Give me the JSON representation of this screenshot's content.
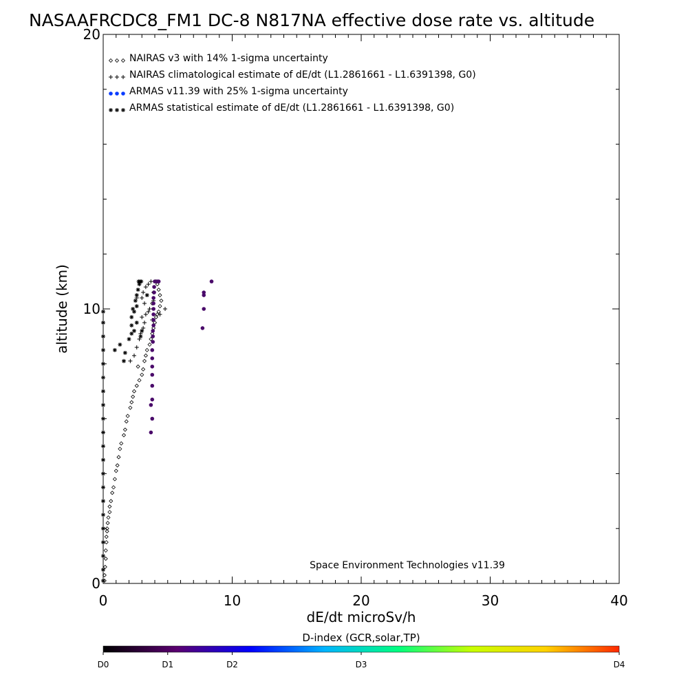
{
  "chart_data": {
    "type": "scatter",
    "title": "NASAAFRCDC8_FM1 DC-8   N817NA effective dose rate vs. altitude",
    "xlabel": "dE/dt microSv/h",
    "ylabel": "altitude (km)",
    "xlim": [
      0,
      40
    ],
    "ylim": [
      0,
      20
    ],
    "x_ticks": [
      "0",
      "10",
      "20",
      "30",
      "40"
    ],
    "y_ticks": [
      "0",
      "10",
      "20"
    ],
    "grid": false,
    "legend_placement": "top-left",
    "annotation": "Space Environment Technologies v11.39",
    "colorbar": {
      "title": "D-index (GCR,solar,TP)",
      "labels": [
        {
          "text": "D0",
          "value": 0
        },
        {
          "text": "D1",
          "value": 1
        },
        {
          "text": "D2",
          "value": 2
        },
        {
          "text": "D3",
          "value": 4
        },
        {
          "text": "D4",
          "value": 8
        }
      ],
      "max_value": 8,
      "colors": [
        "#000000",
        "#5a0070",
        "#0000ff",
        "#00b4ff",
        "#00ff80",
        "#c8ff00",
        "#ffd200",
        "#ff2800"
      ]
    },
    "series": [
      {
        "name": "NAIRAS v3 with 14% 1-sigma uncertainty",
        "marker": "diamond",
        "color": "#000000",
        "points": [
          [
            0.1,
            0.1
          ],
          [
            0.1,
            0.3
          ],
          [
            0.15,
            0.6
          ],
          [
            0.2,
            0.9
          ],
          [
            0.2,
            1.2
          ],
          [
            0.25,
            1.5
          ],
          [
            0.25,
            1.7
          ],
          [
            0.3,
            1.9
          ],
          [
            0.3,
            2.0
          ],
          [
            0.35,
            2.2
          ],
          [
            0.4,
            2.4
          ],
          [
            0.5,
            2.6
          ],
          [
            0.5,
            2.8
          ],
          [
            0.6,
            3.0
          ],
          [
            0.7,
            3.3
          ],
          [
            0.8,
            3.5
          ],
          [
            0.9,
            3.8
          ],
          [
            1.0,
            4.1
          ],
          [
            1.1,
            4.3
          ],
          [
            1.2,
            4.6
          ],
          [
            1.3,
            4.9
          ],
          [
            1.4,
            5.1
          ],
          [
            1.6,
            5.4
          ],
          [
            1.7,
            5.6
          ],
          [
            1.8,
            5.9
          ],
          [
            1.9,
            6.1
          ],
          [
            2.1,
            6.4
          ],
          [
            2.2,
            6.6
          ],
          [
            2.3,
            6.8
          ],
          [
            2.4,
            7.0
          ],
          [
            2.6,
            7.2
          ],
          [
            2.8,
            7.4
          ],
          [
            3.0,
            7.6
          ],
          [
            3.1,
            7.8
          ],
          [
            2.7,
            7.9
          ],
          [
            3.2,
            8.1
          ],
          [
            3.3,
            8.3
          ],
          [
            3.4,
            8.5
          ],
          [
            3.6,
            8.7
          ],
          [
            3.7,
            8.9
          ],
          [
            3.8,
            9.1
          ],
          [
            3.9,
            9.3
          ],
          [
            4.0,
            9.5
          ],
          [
            4.1,
            9.7
          ],
          [
            4.2,
            9.8
          ],
          [
            4.3,
            9.9
          ],
          [
            4.4,
            10.1
          ],
          [
            4.5,
            10.3
          ],
          [
            4.4,
            10.5
          ],
          [
            4.3,
            10.7
          ],
          [
            4.2,
            10.9
          ],
          [
            4.1,
            11.0
          ],
          [
            3.9,
            10.6
          ],
          [
            3.8,
            10.2
          ]
        ]
      },
      {
        "name": "NAIRAS climatological estimate of dE/dt (L1.2861661 - L1.6391398, G0)",
        "marker": "plus",
        "color": "#000000",
        "points": [
          [
            2.1,
            8.1
          ],
          [
            2.4,
            8.3
          ],
          [
            2.6,
            8.6
          ],
          [
            2.8,
            8.9
          ],
          [
            2.9,
            9.1
          ],
          [
            3.1,
            9.3
          ],
          [
            3.2,
            9.5
          ],
          [
            3.0,
            9.7
          ],
          [
            3.3,
            9.8
          ],
          [
            3.5,
            9.9
          ],
          [
            3.6,
            10.0
          ],
          [
            3.2,
            10.2
          ],
          [
            3.0,
            10.4
          ],
          [
            2.6,
            10.4
          ],
          [
            3.1,
            10.6
          ],
          [
            3.3,
            10.8
          ],
          [
            3.5,
            10.9
          ],
          [
            3.7,
            11.0
          ],
          [
            4.8,
            10.0
          ],
          [
            4.4,
            9.8
          ],
          [
            3.8,
            9.6
          ],
          [
            3.9,
            10.3
          ]
        ]
      },
      {
        "name": "ARMAS v11.39 with 25% 1-sigma uncertainty",
        "marker": "dot",
        "color": "#4a0a6a",
        "legend_color": "#0a3cff",
        "points": [
          [
            3.7,
            5.5
          ],
          [
            3.8,
            6.0
          ],
          [
            3.7,
            6.5
          ],
          [
            3.8,
            6.7
          ],
          [
            3.8,
            7.2
          ],
          [
            3.8,
            7.6
          ],
          [
            3.8,
            7.9
          ],
          [
            3.8,
            8.2
          ],
          [
            3.8,
            8.5
          ],
          [
            3.85,
            8.8
          ],
          [
            3.85,
            9.0
          ],
          [
            3.85,
            9.2
          ],
          [
            3.9,
            9.4
          ],
          [
            3.9,
            9.6
          ],
          [
            3.9,
            9.8
          ],
          [
            3.9,
            10.0
          ],
          [
            3.9,
            10.2
          ],
          [
            3.9,
            10.4
          ],
          [
            3.95,
            10.6
          ],
          [
            3.95,
            10.8
          ],
          [
            4.0,
            11.0
          ],
          [
            4.2,
            11.0
          ],
          [
            4.3,
            11.0
          ],
          [
            7.7,
            9.3
          ],
          [
            7.8,
            10.0
          ],
          [
            7.8,
            10.5
          ],
          [
            7.8,
            10.6
          ],
          [
            8.4,
            11.0
          ]
        ]
      },
      {
        "name": "ARMAS statistical estimate of dE/dt (L1.2861661 - L1.6391398, G0)",
        "marker": "asterisk",
        "color": "#000000",
        "points": [
          [
            0.0,
            0.1
          ],
          [
            0.0,
            0.5
          ],
          [
            0.0,
            1.0
          ],
          [
            0.0,
            1.5
          ],
          [
            0.0,
            2.0
          ],
          [
            0.0,
            2.5
          ],
          [
            0.0,
            3.0
          ],
          [
            0.0,
            3.5
          ],
          [
            0.0,
            4.0
          ],
          [
            0.0,
            4.5
          ],
          [
            0.0,
            5.0
          ],
          [
            0.0,
            5.5
          ],
          [
            0.0,
            6.0
          ],
          [
            0.0,
            6.5
          ],
          [
            0.0,
            7.0
          ],
          [
            0.0,
            7.5
          ],
          [
            0.0,
            8.0
          ],
          [
            0.0,
            8.5
          ],
          [
            0.0,
            9.0
          ],
          [
            0.0,
            9.5
          ],
          [
            0.0,
            9.9
          ],
          [
            0.9,
            8.5
          ],
          [
            1.3,
            8.7
          ],
          [
            1.7,
            8.4
          ],
          [
            1.6,
            8.1
          ],
          [
            2.0,
            8.9
          ],
          [
            2.2,
            9.1
          ],
          [
            2.4,
            9.2
          ],
          [
            2.2,
            9.4
          ],
          [
            2.6,
            9.5
          ],
          [
            2.2,
            9.7
          ],
          [
            2.4,
            9.9
          ],
          [
            2.3,
            10.0
          ],
          [
            2.6,
            10.1
          ],
          [
            2.5,
            10.3
          ],
          [
            2.6,
            10.5
          ],
          [
            2.7,
            10.7
          ],
          [
            2.75,
            11.0
          ],
          [
            2.85,
            11.0
          ],
          [
            2.95,
            11.0
          ],
          [
            2.8,
            10.9
          ],
          [
            3.4,
            10.5
          ],
          [
            3.0,
            9.2
          ],
          [
            2.9,
            9.0
          ]
        ]
      }
    ]
  }
}
